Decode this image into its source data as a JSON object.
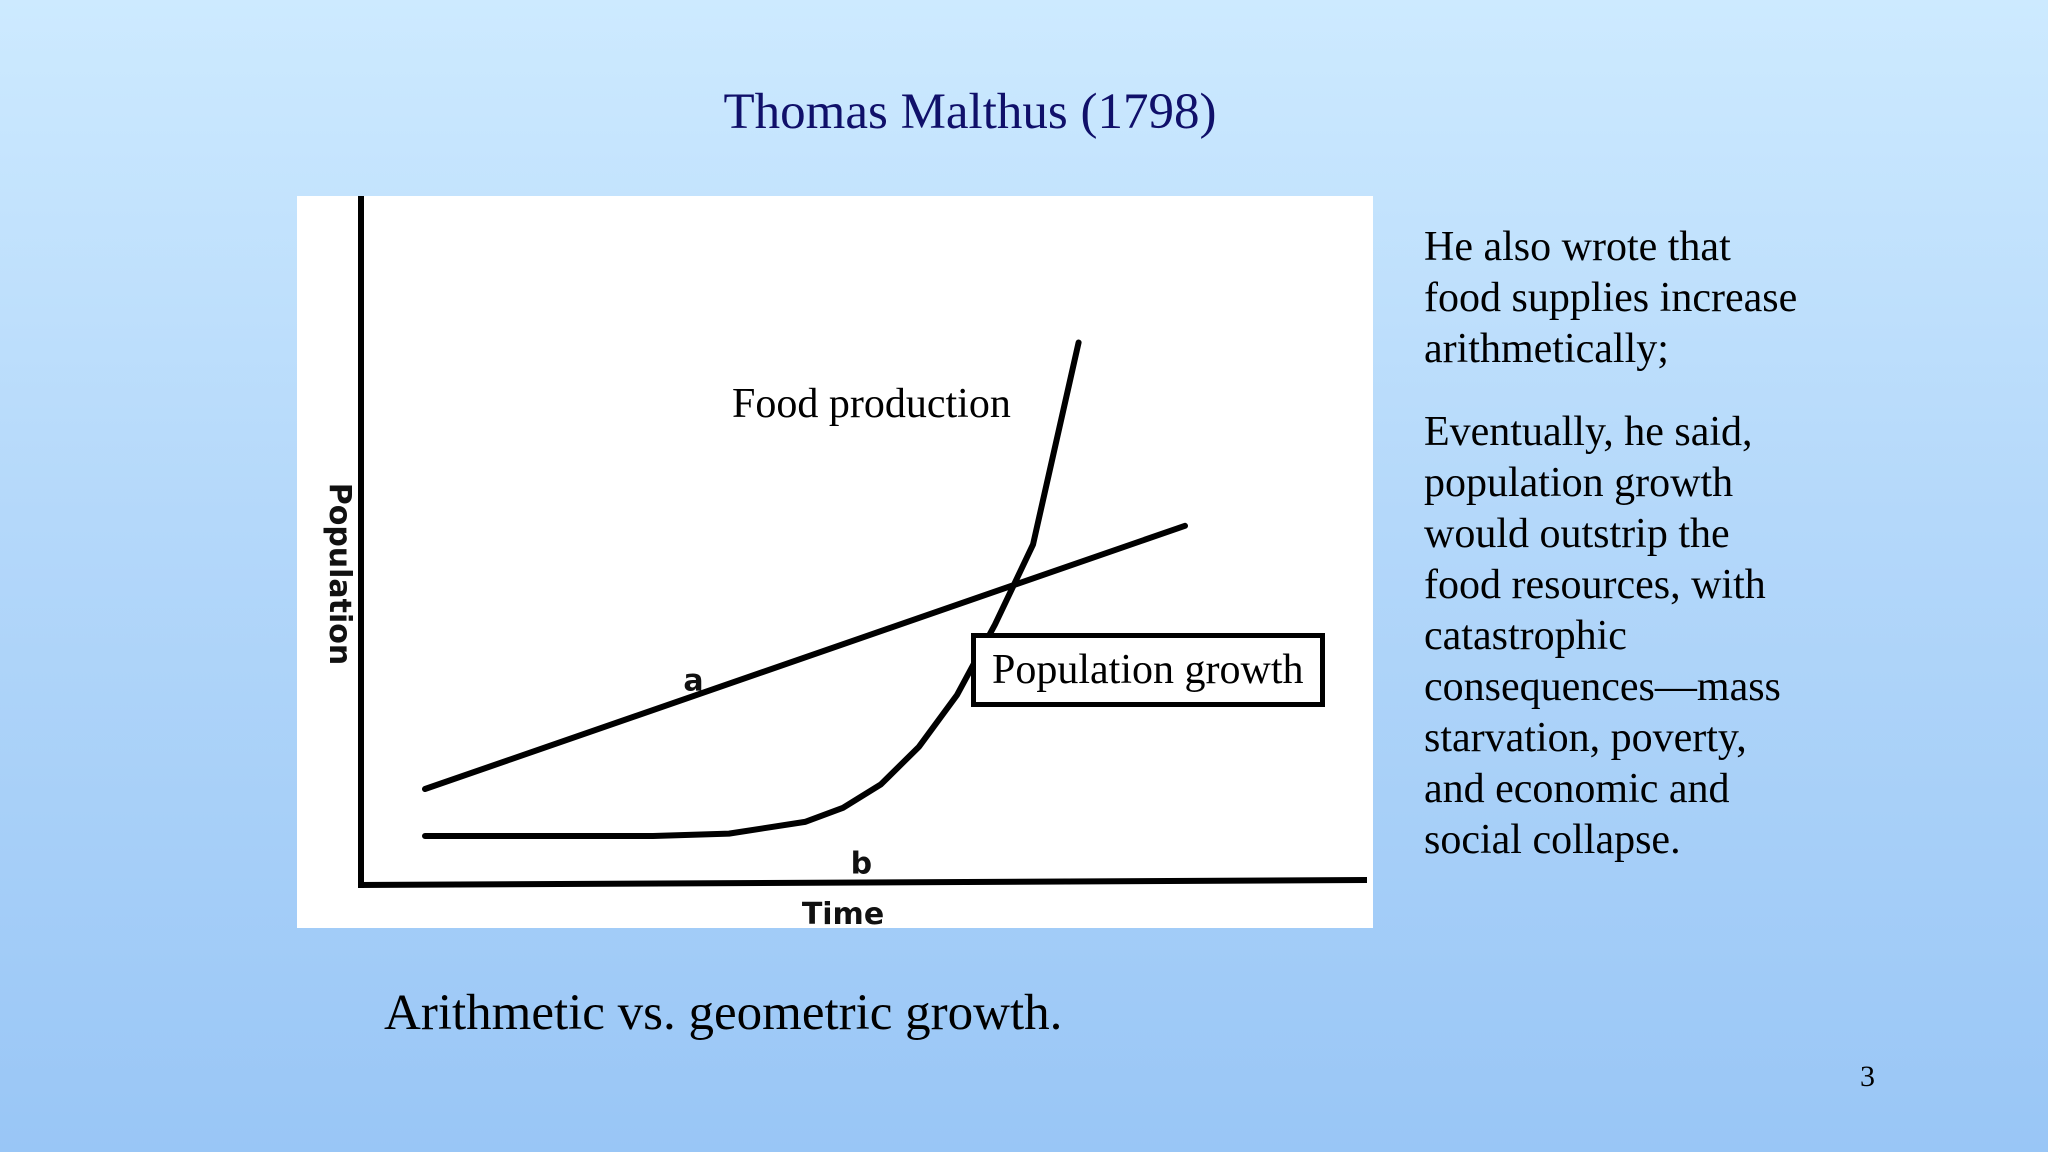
{
  "slide": {
    "title": "Thomas Malthus (1798)",
    "caption": "Arithmetic vs. geometric growth.",
    "side_paragraphs": [
      "He also wrote that food supplies increase arithmetically;",
      "Eventually, he said, population growth would outstrip the food resources, with catastrophic consequences—mass starvation, poverty, and economic and social collapse."
    ],
    "page_number": "3",
    "background_colors": [
      "#cdeaff",
      "#99c6f6"
    ],
    "title_color": "#10106a"
  },
  "chart_data": {
    "type": "line",
    "title": "",
    "xlabel": "Time",
    "ylabel": "Population",
    "grid": false,
    "legend": "none",
    "annotations": [
      "Food production",
      "Population growth"
    ],
    "series": [
      {
        "name": "Food production",
        "marker": "a",
        "x": [
          0,
          10
        ],
        "y": [
          1,
          6.6
        ]
      },
      {
        "name": "Population growth",
        "marker": "b",
        "x": [
          0,
          3,
          4,
          5,
          5.5,
          6,
          6.5,
          7,
          7.5,
          8,
          8.6
        ],
        "y": [
          0,
          0,
          0.05,
          0.3,
          0.6,
          1.1,
          1.9,
          3.0,
          4.5,
          6.2,
          10.5
        ]
      }
    ]
  }
}
